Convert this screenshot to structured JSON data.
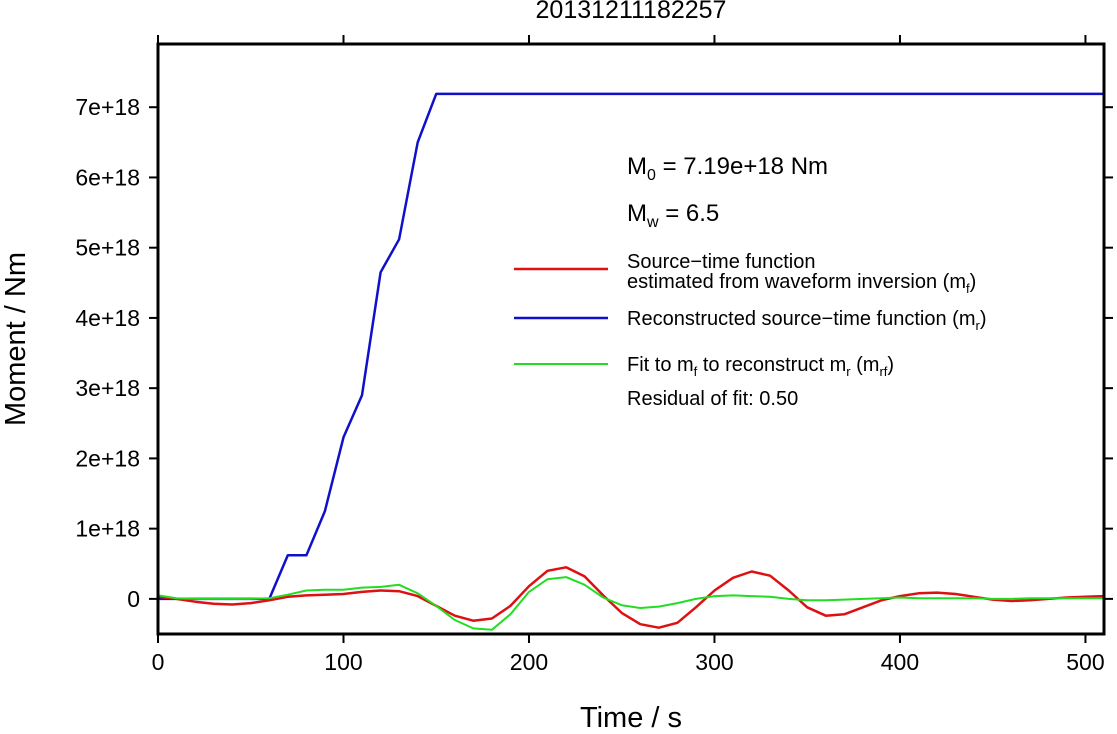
{
  "chart_data": {
    "type": "line",
    "title": "20131211182257",
    "xlabel": "Time / s",
    "ylabel": "Moment / Nm",
    "xlim": [
      0,
      510
    ],
    "ylim": [
      -5e+17,
      7.9e+18
    ],
    "x_ticks": [
      0,
      100,
      200,
      300,
      400,
      500
    ],
    "x_tick_labels": [
      "0",
      "100",
      "200",
      "300",
      "400",
      "500"
    ],
    "y_ticks": [
      0,
      1e+18,
      2e+18,
      3e+18,
      4e+18,
      5e+18,
      6e+18,
      7e+18
    ],
    "y_tick_labels": [
      "0",
      "1e+18",
      "2e+18",
      "3e+18",
      "4e+18",
      "5e+18",
      "6e+18",
      "7e+18"
    ],
    "grid": false,
    "legend_position": "right",
    "colors": {
      "red": "#dd1111",
      "blue": "#1010cc",
      "green": "#22dd22"
    },
    "annotations": {
      "m0_label": "M",
      "m0_sub": "0",
      "m0_value": " = 7.19e+18 Nm",
      "mw_label": "M",
      "mw_sub": "w",
      "mw_value": " = 6.5",
      "residual": "Residual of fit: 0.50"
    },
    "legend": {
      "red_line1": "Source−time function",
      "red_line2_pre": "estimated from waveform inversion (m",
      "red_line2_sub": "f",
      "red_line2_post": ")",
      "blue_pre": "Reconstructed source−time function (m",
      "blue_sub": "r",
      "blue_post": ")",
      "green_a": "Fit to m",
      "green_a_sub": "f",
      "green_b": " to reconstruct m",
      "green_b_sub": "r",
      "green_c": " (m",
      "green_c_sub": "rf",
      "green_d": ")"
    },
    "series": [
      {
        "color": "#1010cc",
        "x": [
          0,
          60,
          70,
          80,
          90,
          100,
          110,
          120,
          130,
          140,
          150,
          510
        ],
        "y": [
          0,
          0,
          6.2e+17,
          6.2e+17,
          1.25e+18,
          2.3e+18,
          2.9e+18,
          4.65e+18,
          5.12e+18,
          6.5e+18,
          7.19e+18,
          7.19e+18
        ]
      },
      {
        "color": "#dd1111",
        "x": [
          0,
          10,
          20,
          30,
          40,
          50,
          60,
          70,
          80,
          90,
          100,
          110,
          120,
          130,
          140,
          150,
          160,
          170,
          180,
          190,
          200,
          210,
          220,
          230,
          240,
          250,
          260,
          270,
          280,
          290,
          300,
          310,
          320,
          330,
          340,
          350,
          360,
          370,
          380,
          390,
          400,
          410,
          420,
          430,
          440,
          450,
          460,
          470,
          480,
          490,
          500,
          510
        ],
        "y": [
          3e+16,
          0.0,
          -4e+16,
          -7e+16,
          -8e+16,
          -6e+16,
          -2e+16,
          3e+16,
          5e+16,
          6e+16,
          7e+16,
          1e+17,
          1.2e+17,
          1.1e+17,
          4e+16,
          -1e+17,
          -2.4e+17,
          -3.1e+17,
          -2.8e+17,
          -1e+17,
          1.8e+17,
          4e+17,
          4.5e+17,
          3.2e+17,
          5e+16,
          -2e+17,
          -3.6e+17,
          -4.1e+17,
          -3.4e+17,
          -1.2e+17,
          1.2e+17,
          3e+17,
          3.9e+17,
          3.3e+17,
          1.2e+17,
          -1.2e+17,
          -2.4e+17,
          -2.2e+17,
          -1.2e+17,
          -2e+16,
          4e+16,
          8e+16,
          9e+16,
          7e+16,
          3e+16,
          -1e+16,
          -3e+16,
          -2e+16,
          0.0,
          2e+16,
          3e+16,
          4e+16
        ]
      },
      {
        "color": "#22dd22",
        "x": [
          0,
          10,
          20,
          30,
          40,
          50,
          60,
          70,
          80,
          90,
          100,
          110,
          120,
          130,
          140,
          150,
          160,
          170,
          180,
          190,
          200,
          210,
          220,
          230,
          240,
          250,
          260,
          270,
          280,
          290,
          300,
          310,
          320,
          330,
          340,
          350,
          360,
          370,
          380,
          390,
          400,
          410,
          420,
          430,
          440,
          450,
          460,
          470,
          480,
          490,
          500,
          510
        ],
        "y": [
          5e+16,
          1e+16,
          0.0,
          0.0,
          0.0,
          0.0,
          1e+16,
          6e+16,
          1.2e+17,
          1.3e+17,
          1.3e+17,
          1.6e+17,
          1.7e+17,
          2e+17,
          8e+16,
          -1e+17,
          -3e+17,
          -4.2e+17,
          -4.4e+17,
          -2.2e+17,
          1e+17,
          2.8e+17,
          3.1e+17,
          2e+17,
          2e+16,
          -9e+16,
          -1.3e+17,
          -1.1e+17,
          -6e+16,
          0.0,
          4e+16,
          5e+16,
          4e+16,
          3e+16,
          0.0,
          -2e+16,
          -2e+16,
          -1e+16,
          0.0,
          1e+16,
          2e+16,
          1e+16,
          1e+16,
          1e+16,
          1e+16,
          0.0,
          0.0,
          1e+16,
          1e+16,
          1e+16,
          1e+16,
          1e+16
        ]
      }
    ]
  }
}
